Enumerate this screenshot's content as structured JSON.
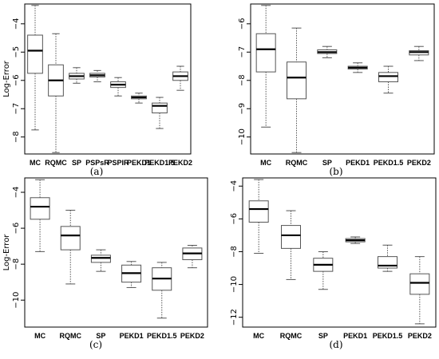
{
  "chart_data": [
    {
      "type": "boxplot",
      "panel_label": "(a)",
      "ylabel": "Log-Error",
      "yticks": [
        -4,
        -5,
        -6,
        -7,
        -8
      ],
      "ylim": [
        -8.6,
        -3.3
      ],
      "categories": [
        "MC",
        "RQMC",
        "SP",
        "PSPsR",
        "PSPIR",
        "PEKD1",
        "PEKD1.5",
        "PEKD2"
      ],
      "boxes": [
        {
          "min": -7.75,
          "q1": -5.75,
          "median": -4.95,
          "q3": -4.4,
          "max": -3.35
        },
        {
          "min": -8.55,
          "q1": -6.55,
          "median": -6.0,
          "q3": -5.45,
          "max": -4.35
        },
        {
          "min": -6.1,
          "q1": -5.95,
          "median": -5.85,
          "q3": -5.75,
          "max": -5.55
        },
        {
          "min": -6.05,
          "q1": -5.88,
          "median": -5.82,
          "q3": -5.75,
          "max": -5.65
        },
        {
          "min": -6.55,
          "q1": -6.25,
          "median": -6.15,
          "q3": -6.05,
          "max": -5.9
        },
        {
          "min": -6.8,
          "q1": -6.65,
          "median": -6.6,
          "q3": -6.55,
          "max": -6.45
        },
        {
          "min": -7.7,
          "q1": -7.15,
          "median": -6.9,
          "q3": -6.8,
          "max": -6.6
        },
        {
          "min": -6.35,
          "q1": -6.0,
          "median": -5.85,
          "q3": -5.7,
          "max": -5.5
        }
      ]
    },
    {
      "type": "boxplot",
      "panel_label": "(b)",
      "ylabel": "",
      "yticks": [
        -6,
        -7,
        -8,
        -9,
        -10
      ],
      "ylim": [
        -10.6,
        -5.3
      ],
      "categories": [
        "MC",
        "RQMC",
        "SP",
        "PEKD1",
        "PEKD1.5",
        "PEKD2"
      ],
      "boxes": [
        {
          "min": -9.65,
          "q1": -7.7,
          "median": -6.9,
          "q3": -6.35,
          "max": -5.35
        },
        {
          "min": -10.55,
          "q1": -8.65,
          "median": -7.9,
          "q3": -7.35,
          "max": -6.15
        },
        {
          "min": -7.2,
          "q1": -7.05,
          "median": -7.0,
          "q3": -6.92,
          "max": -6.8
        },
        {
          "min": -7.72,
          "q1": -7.6,
          "median": -7.55,
          "q3": -7.5,
          "max": -7.38
        },
        {
          "min": -8.45,
          "q1": -8.05,
          "median": -7.85,
          "q3": -7.72,
          "max": -7.5
        },
        {
          "min": -7.3,
          "q1": -7.1,
          "median": -7.0,
          "q3": -6.95,
          "max": -6.8
        }
      ]
    },
    {
      "type": "boxplot",
      "panel_label": "(c)",
      "ylabel": "Log-Error",
      "yticks": [
        -4,
        -6,
        -8,
        -10
      ],
      "ylim": [
        -11.5,
        -3.2
      ],
      "categories": [
        "MC",
        "RQMC",
        "SP",
        "PEKD1",
        "PEKD1.5",
        "PEKD2"
      ],
      "boxes": [
        {
          "min": -7.3,
          "q1": -5.5,
          "median": -4.8,
          "q3": -4.3,
          "max": -3.3
        },
        {
          "min": -9.1,
          "q1": -7.2,
          "median": -6.4,
          "q3": -5.9,
          "max": -5.0
        },
        {
          "min": -8.4,
          "q1": -7.9,
          "median": -7.65,
          "q3": -7.5,
          "max": -7.2
        },
        {
          "min": -9.3,
          "q1": -9.0,
          "median": -8.5,
          "q3": -8.05,
          "max": -7.85
        },
        {
          "min": -11.0,
          "q1": -9.45,
          "median": -8.8,
          "q3": -8.2,
          "max": -7.9
        },
        {
          "min": -8.2,
          "q1": -7.75,
          "median": -7.4,
          "q3": -7.1,
          "max": -6.95
        }
      ]
    },
    {
      "type": "boxplot",
      "panel_label": "(d)",
      "ylabel": "",
      "yticks": [
        -4,
        -6,
        -8,
        -10,
        -12
      ],
      "ylim": [
        -12.6,
        -3.5
      ],
      "categories": [
        "MC",
        "RQMC",
        "SP",
        "PEKD1",
        "PEKD1.5",
        "PEKD2"
      ],
      "boxes": [
        {
          "min": -8.1,
          "q1": -6.2,
          "median": -5.4,
          "q3": -4.9,
          "max": -3.6
        },
        {
          "min": -9.7,
          "q1": -7.8,
          "median": -7.0,
          "q3": -6.4,
          "max": -5.5
        },
        {
          "min": -10.3,
          "q1": -9.2,
          "median": -8.8,
          "q3": -8.4,
          "max": -8.0
        },
        {
          "min": -7.5,
          "q1": -7.4,
          "median": -7.3,
          "q3": -7.2,
          "max": -7.1
        },
        {
          "min": -9.2,
          "q1": -9.0,
          "median": -8.85,
          "q3": -8.3,
          "max": -7.6
        },
        {
          "min": -12.4,
          "q1": -10.6,
          "median": -9.9,
          "q3": -9.35,
          "max": -8.3
        }
      ]
    }
  ]
}
